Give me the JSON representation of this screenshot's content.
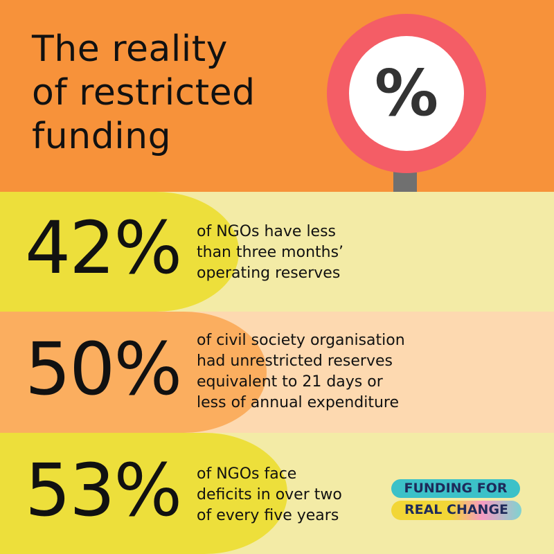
{
  "header": {
    "title": [
      "The reality",
      "of restricted",
      "funding"
    ],
    "icon": "%"
  },
  "stats": [
    {
      "value": "42%",
      "description": [
        "of NGOs have less",
        "than three months’",
        "operating reserves"
      ]
    },
    {
      "value": "50%",
      "description": [
        "of civil society organisation",
        "had unrestricted reserves",
        "equivalent to 21 days or",
        "less of annual expenditure"
      ]
    },
    {
      "value": "53%",
      "description": [
        "of NGOs face",
        "deficits in over two",
        "of every five years"
      ]
    }
  ],
  "logo": [
    "FUNDING FOR",
    "REAL CHANGE"
  ]
}
